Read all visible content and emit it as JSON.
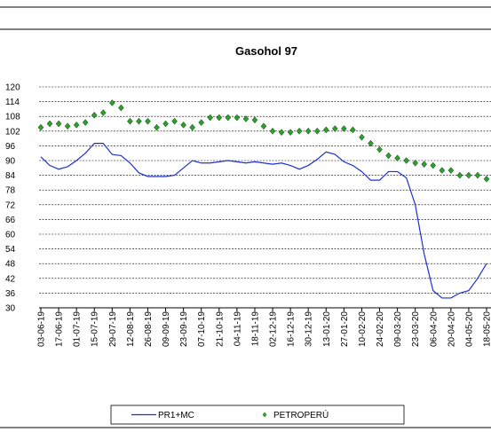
{
  "chart_data": {
    "type": "line",
    "title": "Gasohol 97",
    "categories": [
      "03-06-19",
      null,
      "17-06-19",
      null,
      "01-07-19",
      null,
      "15-07-19",
      null,
      "29-07-19",
      null,
      "12-08-19",
      null,
      "26-08-19",
      null,
      "09-09-19",
      null,
      "23-09-19",
      null,
      "07-10-19",
      null,
      "21-10-19",
      null,
      "04-11-19",
      null,
      "18-11-19",
      null,
      "02-12-19",
      null,
      "16-12-19",
      null,
      "30-12-19",
      null,
      "13-01-20",
      null,
      "27-01-20",
      null,
      "10-02-20",
      null,
      "24-02-20",
      null,
      "09-03-20",
      null,
      "23-03-20",
      null,
      "06-04-20",
      null,
      "20-04-20",
      null,
      "04-05-20",
      null,
      "18-05-20"
    ],
    "series": [
      {
        "name": "PR1+MC",
        "color": "#1f2fd6",
        "style": "line",
        "values": [
          91.5,
          88,
          86.5,
          87.5,
          90,
          93,
          97,
          97,
          92.5,
          92,
          89,
          85,
          83.5,
          83.5,
          83.5,
          84,
          87,
          90,
          89,
          89,
          89.5,
          90,
          89.5,
          89,
          89.5,
          89,
          88.5,
          89,
          88,
          86.5,
          88,
          90.5,
          93.5,
          92.5,
          89.5,
          88,
          85.5,
          82,
          82,
          85.5,
          85.5,
          83,
          72,
          52,
          37,
          34,
          34,
          36,
          37,
          42,
          48
        ]
      },
      {
        "name": "PETROPERÚ",
        "color": "#2e9e2e",
        "style": "markers",
        "values": [
          103.5,
          105,
          105,
          104,
          104.5,
          105.5,
          108.5,
          109.5,
          113.5,
          111.5,
          106,
          106,
          106,
          103.5,
          105,
          106,
          104.5,
          103.5,
          105.5,
          107.5,
          107.5,
          107.5,
          107.5,
          107,
          106.5,
          104,
          102,
          101.5,
          101.5,
          102,
          102,
          102,
          102.5,
          103,
          103,
          102.5,
          99.5,
          97,
          94.5,
          92,
          91,
          90,
          89,
          88.5,
          88,
          86,
          86,
          84,
          84,
          84,
          82.5
        ]
      }
    ],
    "ylim": [
      30,
      120
    ],
    "yticks": [
      30,
      36,
      42,
      48,
      54,
      60,
      66,
      72,
      78,
      84,
      90,
      96,
      102,
      108,
      114,
      120
    ],
    "grid": true
  }
}
